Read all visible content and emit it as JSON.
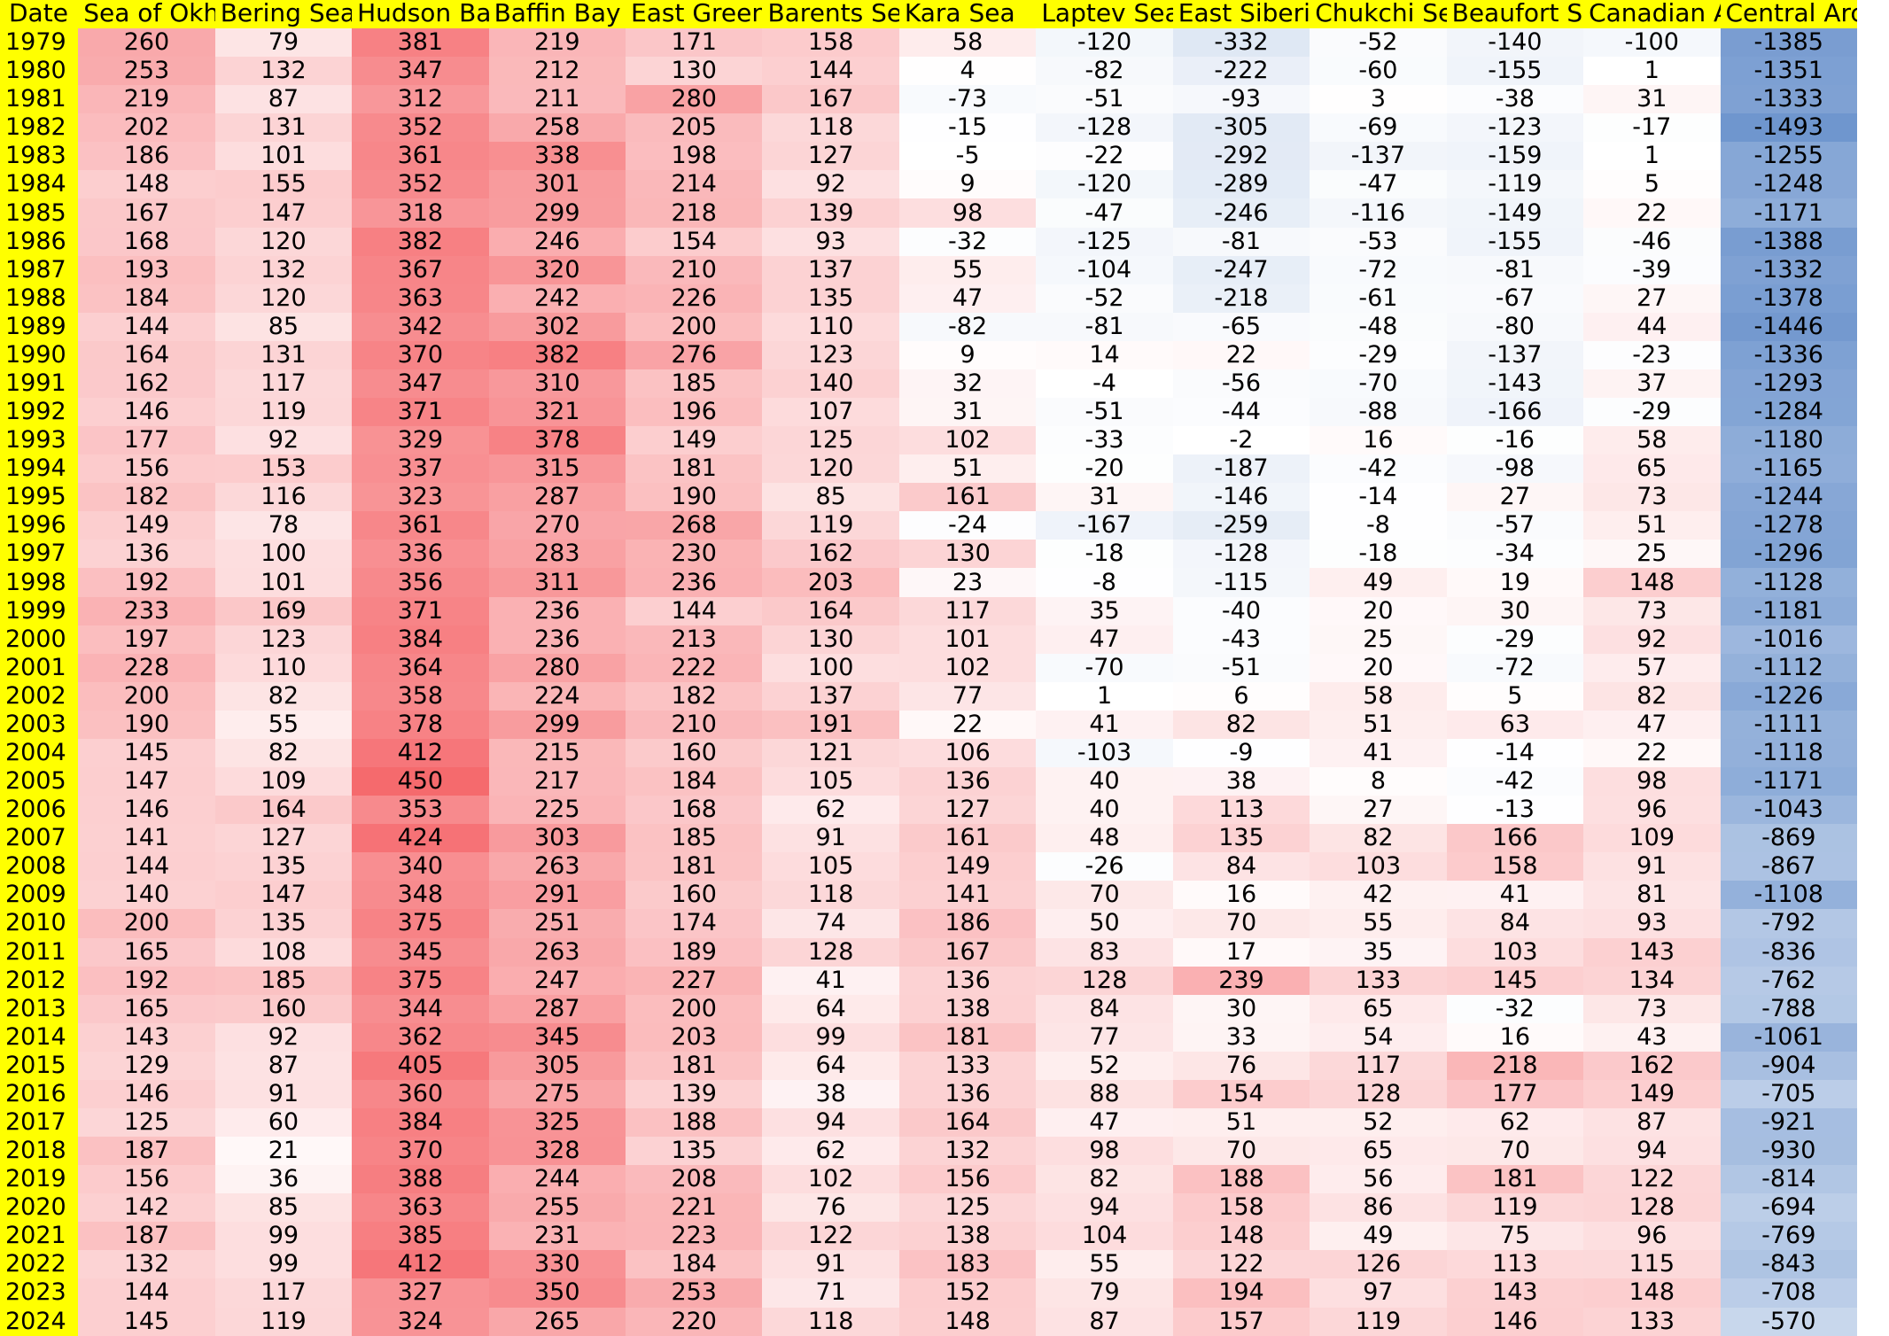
{
  "table": {
    "headers": [
      "Date",
      "Sea of Okhotsk",
      "Bering Sea",
      "Hudson Bay",
      "Baffin Bay",
      "East Greenland Sea",
      "Barents Sea",
      "Kara Sea",
      "Laptev Sea",
      "East Siberian Sea",
      "Chukchi Sea",
      "Beaufort Sea",
      "Canadian Archipelago",
      "Central Arctic"
    ],
    "headers_visible": [
      "Date",
      "Sea of Okh",
      "Bering Sea",
      "Hudson Ba",
      "Baffin Bay",
      "East Green",
      "Barents Se",
      "Kara Sea",
      "Laptev Sea",
      "East Siberi",
      "Chukchi Se",
      "Beaufort Se",
      "Canadian A",
      "Central Arctic"
    ],
    "colors": {
      "header_bg": "#ffff00",
      "date_bg": "#ffff00",
      "positive": "#f4595d",
      "negative": "#5b87c7",
      "neutral": "#ffffff"
    },
    "color_scale": {
      "positive_max": 450,
      "negative_max": 1500
    },
    "rows": [
      [
        "1979",
        "260",
        "79",
        "381",
        "219",
        "171",
        "158",
        "58",
        "-120",
        "-332",
        "-52",
        "-140",
        "-100",
        "-1385"
      ],
      [
        "1980",
        "253",
        "132",
        "347",
        "212",
        "130",
        "144",
        "4",
        "-82",
        "-222",
        "-60",
        "-155",
        "1",
        "-1351"
      ],
      [
        "1981",
        "219",
        "87",
        "312",
        "211",
        "280",
        "167",
        "-73",
        "-51",
        "-93",
        "3",
        "-38",
        "31",
        "-1333"
      ],
      [
        "1982",
        "202",
        "131",
        "352",
        "258",
        "205",
        "118",
        "-15",
        "-128",
        "-305",
        "-69",
        "-123",
        "-17",
        "-1493"
      ],
      [
        "1983",
        "186",
        "101",
        "361",
        "338",
        "198",
        "127",
        "-5",
        "-22",
        "-292",
        "-137",
        "-159",
        "1",
        "-1255"
      ],
      [
        "1984",
        "148",
        "155",
        "352",
        "301",
        "214",
        "92",
        "9",
        "-120",
        "-289",
        "-47",
        "-119",
        "5",
        "-1248"
      ],
      [
        "1985",
        "167",
        "147",
        "318",
        "299",
        "218",
        "139",
        "98",
        "-47",
        "-246",
        "-116",
        "-149",
        "22",
        "-1171"
      ],
      [
        "1986",
        "168",
        "120",
        "382",
        "246",
        "154",
        "93",
        "-32",
        "-125",
        "-81",
        "-53",
        "-155",
        "-46",
        "-1388"
      ],
      [
        "1987",
        "193",
        "132",
        "367",
        "320",
        "210",
        "137",
        "55",
        "-104",
        "-247",
        "-72",
        "-81",
        "-39",
        "-1332"
      ],
      [
        "1988",
        "184",
        "120",
        "363",
        "242",
        "226",
        "135",
        "47",
        "-52",
        "-218",
        "-61",
        "-67",
        "27",
        "-1378"
      ],
      [
        "1989",
        "144",
        "85",
        "342",
        "302",
        "200",
        "110",
        "-82",
        "-81",
        "-65",
        "-48",
        "-80",
        "44",
        "-1446"
      ],
      [
        "1990",
        "164",
        "131",
        "370",
        "382",
        "276",
        "123",
        "9",
        "14",
        "22",
        "-29",
        "-137",
        "-23",
        "-1336"
      ],
      [
        "1991",
        "162",
        "117",
        "347",
        "310",
        "185",
        "140",
        "32",
        "-4",
        "-56",
        "-70",
        "-143",
        "37",
        "-1293"
      ],
      [
        "1992",
        "146",
        "119",
        "371",
        "321",
        "196",
        "107",
        "31",
        "-51",
        "-44",
        "-88",
        "-166",
        "-29",
        "-1284"
      ],
      [
        "1993",
        "177",
        "92",
        "329",
        "378",
        "149",
        "125",
        "102",
        "-33",
        "-2",
        "16",
        "-16",
        "58",
        "-1180"
      ],
      [
        "1994",
        "156",
        "153",
        "337",
        "315",
        "181",
        "120",
        "51",
        "-20",
        "-187",
        "-42",
        "-98",
        "65",
        "-1165"
      ],
      [
        "1995",
        "182",
        "116",
        "323",
        "287",
        "190",
        "85",
        "161",
        "31",
        "-146",
        "-14",
        "27",
        "73",
        "-1244"
      ],
      [
        "1996",
        "149",
        "78",
        "361",
        "270",
        "268",
        "119",
        "-24",
        "-167",
        "-259",
        "-8",
        "-57",
        "51",
        "-1278"
      ],
      [
        "1997",
        "136",
        "100",
        "336",
        "283",
        "230",
        "162",
        "130",
        "-18",
        "-128",
        "-18",
        "-34",
        "25",
        "-1296"
      ],
      [
        "1998",
        "192",
        "101",
        "356",
        "311",
        "236",
        "203",
        "23",
        "-8",
        "-115",
        "49",
        "19",
        "148",
        "-1128"
      ],
      [
        "1999",
        "233",
        "169",
        "371",
        "236",
        "144",
        "164",
        "117",
        "35",
        "-40",
        "20",
        "30",
        "73",
        "-1181"
      ],
      [
        "2000",
        "197",
        "123",
        "384",
        "236",
        "213",
        "130",
        "101",
        "47",
        "-43",
        "25",
        "-29",
        "92",
        "-1016"
      ],
      [
        "2001",
        "228",
        "110",
        "364",
        "280",
        "222",
        "100",
        "102",
        "-70",
        "-51",
        "20",
        "-72",
        "57",
        "-1112"
      ],
      [
        "2002",
        "200",
        "82",
        "358",
        "224",
        "182",
        "137",
        "77",
        "1",
        "6",
        "58",
        "5",
        "82",
        "-1226"
      ],
      [
        "2003",
        "190",
        "55",
        "378",
        "299",
        "210",
        "191",
        "22",
        "41",
        "82",
        "51",
        "63",
        "47",
        "-1111"
      ],
      [
        "2004",
        "145",
        "82",
        "412",
        "215",
        "160",
        "121",
        "106",
        "-103",
        "-9",
        "41",
        "-14",
        "22",
        "-1118"
      ],
      [
        "2005",
        "147",
        "109",
        "450",
        "217",
        "184",
        "105",
        "136",
        "40",
        "38",
        "8",
        "-42",
        "98",
        "-1171"
      ],
      [
        "2006",
        "146",
        "164",
        "353",
        "225",
        "168",
        "62",
        "127",
        "40",
        "113",
        "27",
        "-13",
        "96",
        "-1043"
      ],
      [
        "2007",
        "141",
        "127",
        "424",
        "303",
        "185",
        "91",
        "161",
        "48",
        "135",
        "82",
        "166",
        "109",
        "-869"
      ],
      [
        "2008",
        "144",
        "135",
        "340",
        "263",
        "181",
        "105",
        "149",
        "-26",
        "84",
        "103",
        "158",
        "91",
        "-867"
      ],
      [
        "2009",
        "140",
        "147",
        "348",
        "291",
        "160",
        "118",
        "141",
        "70",
        "16",
        "42",
        "41",
        "81",
        "-1108"
      ],
      [
        "2010",
        "200",
        "135",
        "375",
        "251",
        "174",
        "74",
        "186",
        "50",
        "70",
        "55",
        "84",
        "93",
        "-792"
      ],
      [
        "2011",
        "165",
        "108",
        "345",
        "263",
        "189",
        "128",
        "167",
        "83",
        "17",
        "35",
        "103",
        "143",
        "-836"
      ],
      [
        "2012",
        "192",
        "185",
        "375",
        "247",
        "227",
        "41",
        "136",
        "128",
        "239",
        "133",
        "145",
        "134",
        "-762"
      ],
      [
        "2013",
        "165",
        "160",
        "344",
        "287",
        "200",
        "64",
        "138",
        "84",
        "30",
        "65",
        "-32",
        "73",
        "-788"
      ],
      [
        "2014",
        "143",
        "92",
        "362",
        "345",
        "203",
        "99",
        "181",
        "77",
        "33",
        "54",
        "16",
        "43",
        "-1061"
      ],
      [
        "2015",
        "129",
        "87",
        "405",
        "305",
        "181",
        "64",
        "133",
        "52",
        "76",
        "117",
        "218",
        "162",
        "-904"
      ],
      [
        "2016",
        "146",
        "91",
        "360",
        "275",
        "139",
        "38",
        "136",
        "88",
        "154",
        "128",
        "177",
        "149",
        "-705"
      ],
      [
        "2017",
        "125",
        "60",
        "384",
        "325",
        "188",
        "94",
        "164",
        "47",
        "51",
        "52",
        "62",
        "87",
        "-921"
      ],
      [
        "2018",
        "187",
        "21",
        "370",
        "328",
        "135",
        "62",
        "132",
        "98",
        "70",
        "65",
        "70",
        "94",
        "-930"
      ],
      [
        "2019",
        "156",
        "36",
        "388",
        "244",
        "208",
        "102",
        "156",
        "82",
        "188",
        "56",
        "181",
        "122",
        "-814"
      ],
      [
        "2020",
        "142",
        "85",
        "363",
        "255",
        "221",
        "76",
        "125",
        "94",
        "158",
        "86",
        "119",
        "128",
        "-694"
      ],
      [
        "2021",
        "187",
        "99",
        "385",
        "231",
        "223",
        "122",
        "138",
        "104",
        "148",
        "49",
        "75",
        "96",
        "-769"
      ],
      [
        "2022",
        "132",
        "99",
        "412",
        "330",
        "184",
        "91",
        "183",
        "55",
        "122",
        "126",
        "113",
        "115",
        "-843"
      ],
      [
        "2023",
        "144",
        "117",
        "327",
        "350",
        "253",
        "71",
        "152",
        "79",
        "194",
        "97",
        "143",
        "148",
        "-708"
      ],
      [
        "2024",
        "145",
        "119",
        "324",
        "265",
        "220",
        "118",
        "148",
        "87",
        "157",
        "119",
        "146",
        "133",
        "-570"
      ]
    ]
  }
}
